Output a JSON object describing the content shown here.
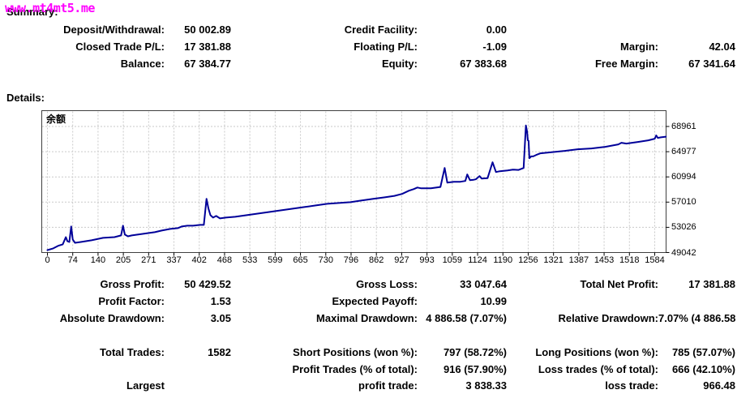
{
  "watermark": "www.mt4mt5.me",
  "summary": {
    "title": "Summary:",
    "rows": [
      {
        "l_label": "Deposit/Withdrawal:",
        "l_value": "50 002.89",
        "m_label": "Credit Facility:",
        "m_value": "0.00",
        "r_label": "",
        "r_value": ""
      },
      {
        "l_label": "Closed Trade P/L:",
        "l_value": "17 381.88",
        "m_label": "Floating P/L:",
        "m_value": "-1.09",
        "r_label": "Margin:",
        "r_value": "42.04"
      },
      {
        "l_label": "Balance:",
        "l_value": "67 384.77",
        "m_label": "Equity:",
        "m_value": "67 383.68",
        "r_label": "Free Margin:",
        "r_value": "67 341.64"
      }
    ]
  },
  "details": {
    "title": "Details:"
  },
  "chart_data": {
    "type": "line",
    "title": "余额",
    "grid": "dashed",
    "grid_color": "#c9c9c9",
    "border_color": "#404040",
    "x_ticks": [
      0,
      74,
      140,
      205,
      271,
      337,
      402,
      468,
      533,
      599,
      665,
      730,
      796,
      862,
      927,
      993,
      1059,
      1124,
      1190,
      1256,
      1321,
      1387,
      1453,
      1518,
      1584
    ],
    "y_ticks": [
      49042,
      53026,
      57010,
      60994,
      64977,
      68961
    ],
    "x_domain": [
      0,
      1613
    ],
    "y_domain": [
      49042,
      71459
    ],
    "series": [
      {
        "name": "余额",
        "color": "#000099",
        "points": [
          [
            0,
            49430
          ],
          [
            15,
            49700
          ],
          [
            28,
            50100
          ],
          [
            40,
            50330
          ],
          [
            48,
            51480
          ],
          [
            52,
            50840
          ],
          [
            57,
            50710
          ],
          [
            62,
            53150
          ],
          [
            66,
            51100
          ],
          [
            72,
            50580
          ],
          [
            87,
            50710
          ],
          [
            115,
            50970
          ],
          [
            145,
            51360
          ],
          [
            175,
            51480
          ],
          [
            192,
            51740
          ],
          [
            197,
            53280
          ],
          [
            202,
            51870
          ],
          [
            210,
            51610
          ],
          [
            220,
            51740
          ],
          [
            250,
            52000
          ],
          [
            280,
            52260
          ],
          [
            298,
            52510
          ],
          [
            320,
            52770
          ],
          [
            340,
            52900
          ],
          [
            350,
            53150
          ],
          [
            365,
            53280
          ],
          [
            380,
            53280
          ],
          [
            398,
            53410
          ],
          [
            408,
            53410
          ],
          [
            415,
            57520
          ],
          [
            420,
            55980
          ],
          [
            425,
            54950
          ],
          [
            432,
            54560
          ],
          [
            440,
            54820
          ],
          [
            450,
            54430
          ],
          [
            465,
            54560
          ],
          [
            490,
            54690
          ],
          [
            520,
            54950
          ],
          [
            550,
            55200
          ],
          [
            580,
            55460
          ],
          [
            610,
            55710
          ],
          [
            640,
            55970
          ],
          [
            670,
            56230
          ],
          [
            700,
            56480
          ],
          [
            730,
            56740
          ],
          [
            760,
            56870
          ],
          [
            790,
            57000
          ],
          [
            820,
            57260
          ],
          [
            850,
            57520
          ],
          [
            880,
            57770
          ],
          [
            905,
            58000
          ],
          [
            925,
            58300
          ],
          [
            943,
            58810
          ],
          [
            955,
            59060
          ],
          [
            965,
            59320
          ],
          [
            975,
            59190
          ],
          [
            1000,
            59190
          ],
          [
            1025,
            59400
          ],
          [
            1036,
            62400
          ],
          [
            1043,
            60090
          ],
          [
            1060,
            60220
          ],
          [
            1077,
            60220
          ],
          [
            1090,
            60350
          ],
          [
            1095,
            61380
          ],
          [
            1102,
            60480
          ],
          [
            1112,
            60540
          ],
          [
            1117,
            60610
          ],
          [
            1127,
            61120
          ],
          [
            1133,
            60730
          ],
          [
            1148,
            60790
          ],
          [
            1161,
            63300
          ],
          [
            1170,
            61760
          ],
          [
            1180,
            61890
          ],
          [
            1200,
            62020
          ],
          [
            1214,
            62150
          ],
          [
            1229,
            62090
          ],
          [
            1242,
            62400
          ],
          [
            1248,
            69118
          ],
          [
            1251,
            68200
          ],
          [
            1253,
            66770
          ],
          [
            1255,
            66700
          ],
          [
            1257,
            63950
          ],
          [
            1262,
            64230
          ],
          [
            1267,
            64230
          ],
          [
            1275,
            64460
          ],
          [
            1286,
            64720
          ],
          [
            1307,
            64850
          ],
          [
            1328,
            64980
          ],
          [
            1349,
            65110
          ],
          [
            1383,
            65360
          ],
          [
            1419,
            65490
          ],
          [
            1455,
            65750
          ],
          [
            1489,
            66130
          ],
          [
            1497,
            66390
          ],
          [
            1510,
            66260
          ],
          [
            1525,
            66390
          ],
          [
            1540,
            66520
          ],
          [
            1567,
            66770
          ],
          [
            1584,
            67030
          ],
          [
            1588,
            67540
          ],
          [
            1592,
            67160
          ],
          [
            1600,
            67250
          ],
          [
            1613,
            67350
          ]
        ]
      }
    ]
  },
  "stats": {
    "rows": [
      {
        "l_label": "Gross Profit:",
        "l_value": "50 429.52",
        "m_label": "Gross Loss:",
        "m_value": "33 047.64",
        "r_label": "Total Net Profit:",
        "r_value": "17 381.88"
      },
      {
        "l_label": "Profit Factor:",
        "l_value": "1.53",
        "m_label": "Expected Payoff:",
        "m_value": "10.99",
        "r_label": "",
        "r_value": ""
      },
      {
        "l_label": "Absolute Drawdown:",
        "l_value": "3.05",
        "m_label": "Maximal Drawdown:",
        "m_value": "4 886.58 (7.07%)",
        "r_label": "Relative Drawdown:",
        "r_value": "7.07% (4 886.58)"
      },
      {
        "l_label": "Total Trades:",
        "l_value": "1582",
        "m_label": "Short Positions (won %):",
        "m_value": "797 (58.72%)",
        "r_label": "Long Positions (won %):",
        "r_value": "785 (57.07%)"
      },
      {
        "l_label": "",
        "l_value": "",
        "m_label": "Profit Trades (% of total):",
        "m_value": "916 (57.90%)",
        "r_label": "Loss trades (% of total):",
        "r_value": "666 (42.10%)"
      },
      {
        "l_label": "Largest",
        "l_value": "",
        "m_label": "profit trade:",
        "m_value": "3 838.33",
        "r_label": "loss trade:",
        "r_value": "966.48"
      }
    ]
  }
}
